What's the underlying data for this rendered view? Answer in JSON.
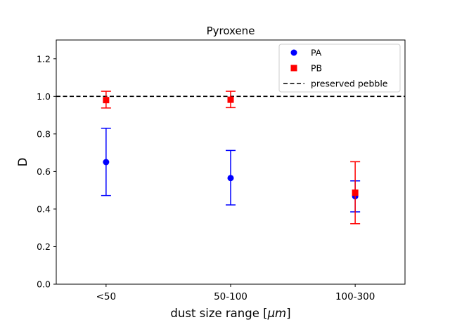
{
  "chart_data": {
    "type": "scatter",
    "title": "Pyroxene",
    "xlabel": "dust size range [",
    "xlabel_mu": "μm",
    "xlabel_end": "]",
    "ylabel": "D",
    "categories": [
      "<50",
      "50-100",
      "100-300"
    ],
    "ylim": [
      0.0,
      1.3
    ],
    "yticks": [
      "0.0",
      "0.2",
      "0.4",
      "0.6",
      "0.8",
      "1.0",
      "1.2"
    ],
    "ytick_values": [
      0.0,
      0.2,
      0.4,
      0.6,
      0.8,
      1.0,
      1.2
    ],
    "series": [
      {
        "name": "PA",
        "marker": "circle",
        "color": "#0000ff",
        "values": [
          0.65,
          0.565,
          0.468
        ],
        "err_low": [
          0.472,
          0.422,
          0.385
        ],
        "err_high": [
          0.83,
          0.712,
          0.55
        ]
      },
      {
        "name": "PB",
        "marker": "square",
        "color": "#ff0000",
        "values": [
          0.98,
          0.982,
          0.487
        ],
        "err_low": [
          0.938,
          0.94,
          0.322
        ],
        "err_high": [
          1.027,
          1.027,
          0.652
        ]
      }
    ],
    "reference_line": {
      "name": "preserved pebble",
      "value": 1.0,
      "style": "dashed",
      "color": "#000000"
    },
    "legend_position": "top-right",
    "grid": false
  }
}
